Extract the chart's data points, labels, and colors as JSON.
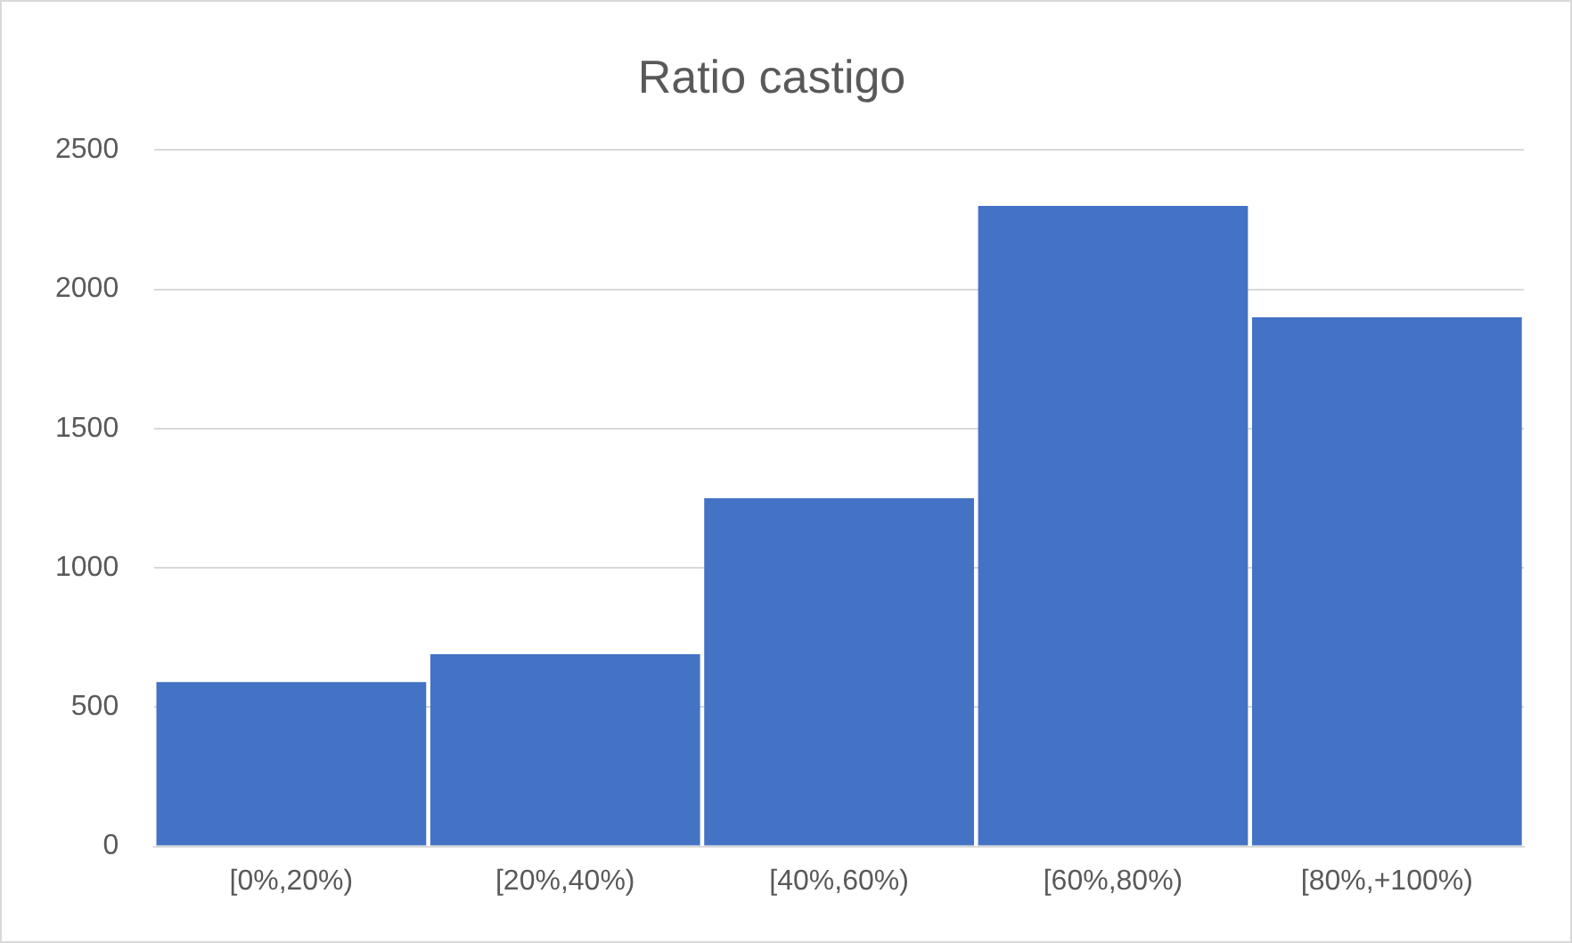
{
  "chart_data": {
    "type": "bar",
    "title": "Ratio castigo",
    "categories": [
      "[0%,20%)",
      "[20%,40%)",
      "[40%,60%)",
      "[60%,80%)",
      "[80%,+100%)"
    ],
    "values": [
      590,
      690,
      1250,
      2300,
      1900
    ],
    "color": "#4472c4",
    "ylim": [
      0,
      2500
    ],
    "yticks": [
      0,
      500,
      1000,
      1500,
      2000,
      2500
    ],
    "grid": "y",
    "legend": false
  }
}
